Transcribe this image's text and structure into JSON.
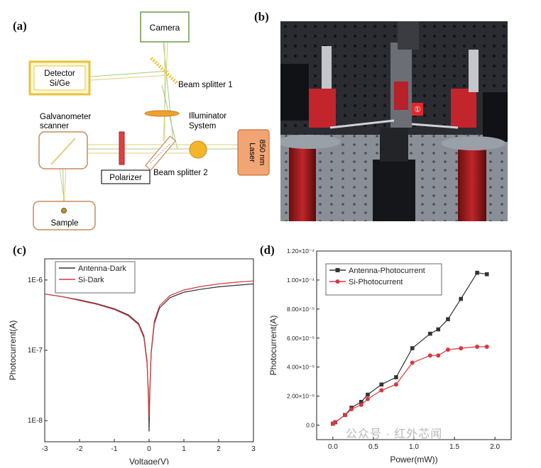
{
  "panels": {
    "a": {
      "label": "(a)",
      "camera": "Camera",
      "detector_line1": "Detector",
      "detector_line2": "Si/Ge",
      "beam_splitter_1": "Beam splitter 1",
      "illuminator_line1": "Illuminator",
      "illuminator_line2": "System",
      "galvo_line1": "Galvanometer",
      "galvo_line2": "scanner",
      "laser_line1": "Laser",
      "laser_line2": "850 nm",
      "polarizer": "Polarizer",
      "beam_splitter_2": "Beam splitter 2",
      "sample": "Sample"
    },
    "b": {
      "label": "(b)",
      "marker": "①"
    },
    "c": {
      "label": "(c)"
    },
    "d": {
      "label": "(d)"
    }
  },
  "watermark": "公众号 · 红外芯闻",
  "chart_data": [
    {
      "type": "line",
      "panel": "c",
      "xlabel": "Voltage(V)",
      "ylabel": "Photocurrent(A)",
      "xlim": [
        -3,
        3
      ],
      "ylim": [
        5e-09,
        2e-06
      ],
      "yscale": "log",
      "xticks": [
        -3,
        -2,
        -1,
        0,
        1,
        2,
        3
      ],
      "yticks": [
        1e-08,
        1e-07,
        1e-06
      ],
      "ytick_labels": [
        "1E-8",
        "1E-7",
        "1E-6"
      ],
      "legend_position": "top-left",
      "series": [
        {
          "name": "Antenna-Dark",
          "color": "#333333",
          "x": [
            -3,
            -2.5,
            -2,
            -1.5,
            -1,
            -0.6,
            -0.3,
            -0.15,
            -0.06,
            -0.02,
            0,
            0.02,
            0.06,
            0.15,
            0.3,
            0.6,
            1,
            1.5,
            2,
            2.5,
            3
          ],
          "y": [
            6.3e-07,
            5.8e-07,
            5.2e-07,
            4.6e-07,
            3.9e-07,
            3.2e-07,
            2.4e-07,
            1.6e-07,
            7e-08,
            2.2e-08,
            7e-09,
            2.5e-08,
            9e-08,
            2.4e-07,
            4e-07,
            5.6e-07,
            6.7e-07,
            7.4e-07,
            8e-07,
            8.4e-07,
            8.8e-07
          ]
        },
        {
          "name": "Si-Dark",
          "color": "#d9363e",
          "x": [
            -3,
            -2.5,
            -2,
            -1.5,
            -1,
            -0.6,
            -0.3,
            -0.15,
            -0.06,
            -0.02,
            0,
            0.02,
            0.06,
            0.15,
            0.3,
            0.6,
            1,
            1.5,
            2,
            2.5,
            3
          ],
          "y": [
            6.3e-07,
            5.8e-07,
            5.1e-07,
            4.5e-07,
            3.8e-07,
            3.1e-07,
            2.3e-07,
            1.5e-07,
            6.5e-08,
            2.6e-08,
            1.1e-08,
            2.8e-08,
            9.5e-08,
            2.6e-07,
            4.3e-07,
            6e-07,
            7.2e-07,
            8.1e-07,
            8.8e-07,
            9.3e-07,
            9.7e-07
          ]
        }
      ]
    },
    {
      "type": "line",
      "panel": "d",
      "xlabel": "Power(mW))",
      "ylabel": "Photocurrent(A)",
      "xlim": [
        -0.2,
        2.2
      ],
      "ylim": [
        -1e-05,
        0.00012
      ],
      "xticks": [
        0.0,
        0.5,
        1.0,
        1.5,
        2.0
      ],
      "xtick_labels": [
        "0.0",
        "0.5",
        "1.0",
        "1.5",
        "2.0"
      ],
      "yticks": [
        0,
        2e-05,
        4e-05,
        6e-05,
        8e-05,
        0.0001,
        0.00012
      ],
      "ytick_labels": [
        "0.0",
        "2.00×10⁻⁵",
        "4.00×10⁻⁵",
        "6.00×10⁻⁵",
        "8.00×10⁻⁵",
        "1.00×10⁻⁴",
        "1.20×10⁻⁴"
      ],
      "legend_position": "top-left",
      "series": [
        {
          "name": "Antenna-Photocurrent",
          "color": "#333333",
          "x": [
            0.0,
            0.03,
            0.15,
            0.23,
            0.35,
            0.43,
            0.6,
            0.78,
            0.98,
            1.2,
            1.3,
            1.42,
            1.58,
            1.78,
            1.9
          ],
          "y": [
            1e-06,
            2e-06,
            7e-06,
            1.2e-05,
            1.6e-05,
            2.1e-05,
            2.8e-05,
            3.3e-05,
            5.3e-05,
            6.3e-05,
            6.6e-05,
            7.3e-05,
            8.7e-05,
            0.000105,
            0.000104
          ]
        },
        {
          "name": "Si-Photocurrent",
          "color": "#d9363e",
          "x": [
            0.0,
            0.03,
            0.15,
            0.23,
            0.35,
            0.43,
            0.6,
            0.78,
            0.98,
            1.2,
            1.3,
            1.42,
            1.58,
            1.78,
            1.9
          ],
          "y": [
            1e-06,
            2e-06,
            7e-06,
            1.1e-05,
            1.4e-05,
            1.8e-05,
            2.4e-05,
            2.8e-05,
            4.3e-05,
            4.8e-05,
            4.8e-05,
            5.2e-05,
            5.3e-05,
            5.4e-05,
            5.4e-05
          ]
        }
      ]
    }
  ]
}
